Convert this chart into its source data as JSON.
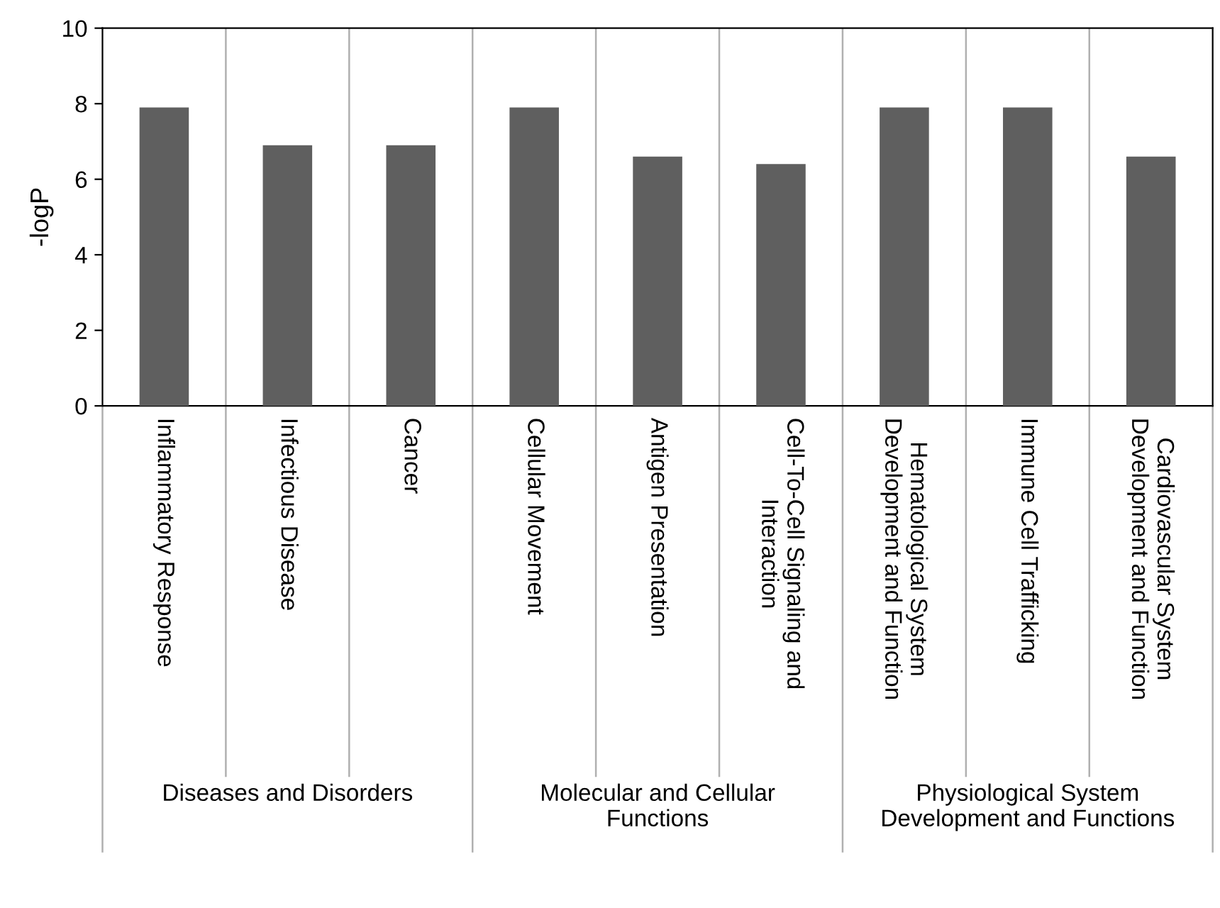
{
  "chart_data": {
    "type": "bar",
    "ylabel": "-logP",
    "categories": [
      "Inflammatory Response",
      "Infectious Disease",
      "Cancer",
      "Cellular Movement",
      "Antigen Presentation",
      "Cell-To-Cell Signaling and\nInteraction",
      "Hematological System\nDevelopment and Function",
      "Immune Cell Trafficking",
      "Cardiovascular System\nDevelopment and Function"
    ],
    "values": [
      7.9,
      6.9,
      6.9,
      7.9,
      6.6,
      6.4,
      7.9,
      7.9,
      6.6
    ],
    "color": "#5f5f5f",
    "ylim": [
      0,
      10
    ],
    "yticks": [
      0,
      2,
      4,
      6,
      8,
      10
    ],
    "grid": "x",
    "annotations": [
      "Diseases and Disorders",
      "Molecular and Cellular\nFunctions",
      "Physiological System\nDevelopment and Functions"
    ]
  }
}
